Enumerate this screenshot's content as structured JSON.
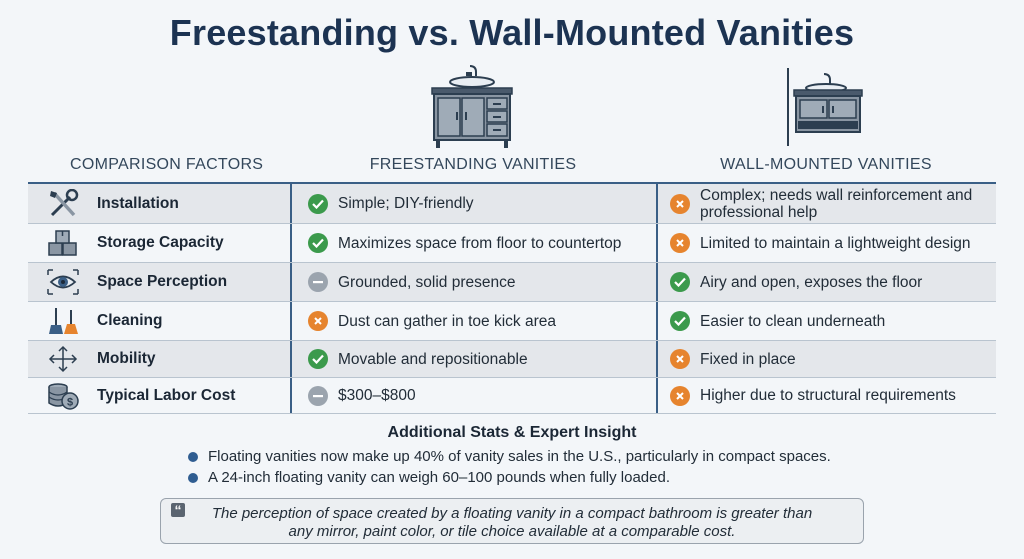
{
  "title": "Freestanding vs. Wall-Mounted Vanities",
  "headers": {
    "factor": "COMPARISON FACTORS",
    "free": "FREESTANDING VANITIES",
    "wall": "WALL-MOUNTED VANITIES"
  },
  "rows": [
    {
      "factor": "Installation",
      "icon": "tools-icon",
      "free": "Simple; DIY-friendly",
      "free_status": "check",
      "wall": "Complex; needs wall reinforcement and professional help",
      "wall_status": "cross"
    },
    {
      "factor": "Storage Capacity",
      "icon": "boxes-icon",
      "free": "Maximizes space from floor to countertop",
      "free_status": "check",
      "wall": "Limited to maintain a lightweight design",
      "wall_status": "cross"
    },
    {
      "factor": "Space Perception",
      "icon": "eye-icon",
      "free": "Grounded, solid presence",
      "free_status": "neutral",
      "wall": "Airy and open, exposes the floor",
      "wall_status": "check"
    },
    {
      "factor": "Cleaning",
      "icon": "mop-broom-icon",
      "free": "Dust can gather in toe kick area",
      "free_status": "cross",
      "wall": "Easier to clean underneath",
      "wall_status": "check"
    },
    {
      "factor": "Mobility",
      "icon": "move-arrows-icon",
      "free": "Movable and repositionable",
      "free_status": "check",
      "wall": "Fixed in place",
      "wall_status": "cross"
    },
    {
      "factor": "Typical Labor Cost",
      "icon": "coins-icon",
      "free": "$300–$800",
      "free_status": "neutral",
      "wall": "Higher due to structural requirements",
      "wall_status": "cross"
    }
  ],
  "stats": {
    "title": "Additional Stats & Expert Insight",
    "bullets": [
      "Floating vanities now make up 40% of vanity sales in the U.S., particularly in compact spaces.",
      "A 24-inch floating vanity can weigh 60–100 pounds when fully loaded."
    ]
  },
  "quote": {
    "line1": "The perception of space created by a floating vanity in a compact bathroom is greater than",
    "line2": "any mirror, paint color, or tile choice available at a comparable cost."
  },
  "colors": {
    "check": "#3b9a4c",
    "cross": "#e6842e",
    "neutral": "#9ba4ae",
    "accent": "#3a5f86"
  }
}
